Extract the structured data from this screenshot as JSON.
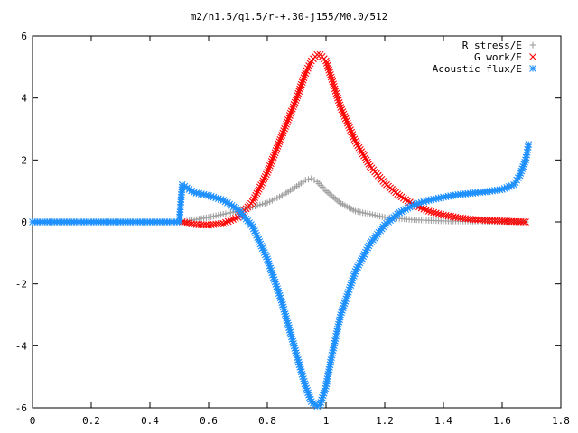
{
  "chart_data": {
    "type": "scatter",
    "title": "m2/n1.5/q1.5/r-+.30-j155/M0.0/512",
    "xlabel": "",
    "ylabel": "",
    "xlim": [
      0,
      1.8
    ],
    "ylim": [
      -6,
      6
    ],
    "x_ticks": [
      "0",
      "0.2",
      "0.4",
      "0.6",
      "0.8",
      "1",
      "1.2",
      "1.4",
      "1.6",
      "1.8"
    ],
    "y_ticks": [
      "-6",
      "-4",
      "-2",
      "0",
      "2",
      "4",
      "6"
    ],
    "grid": false,
    "legend_position": "top-right",
    "series": [
      {
        "name": "R stress/E",
        "marker": "plus",
        "color": "#a0a0a0",
        "x": [
          0.51,
          0.6,
          0.7,
          0.8,
          0.85,
          0.9,
          0.93,
          0.95,
          0.97,
          1.0,
          1.05,
          1.1,
          1.2,
          1.3,
          1.4,
          1.5,
          1.6,
          1.68
        ],
        "y": [
          0.0,
          0.15,
          0.35,
          0.62,
          0.85,
          1.15,
          1.35,
          1.4,
          1.3,
          1.0,
          0.6,
          0.35,
          0.15,
          0.07,
          0.03,
          0.02,
          0.01,
          0.0
        ]
      },
      {
        "name": "G work/E",
        "marker": "x",
        "color": "#ff0000",
        "x": [
          0.51,
          0.55,
          0.6,
          0.65,
          0.7,
          0.75,
          0.8,
          0.85,
          0.9,
          0.93,
          0.95,
          0.97,
          0.98,
          1.0,
          1.02,
          1.05,
          1.1,
          1.15,
          1.2,
          1.25,
          1.3,
          1.35,
          1.4,
          1.45,
          1.5,
          1.55,
          1.6,
          1.68
        ],
        "y": [
          0.0,
          -0.08,
          -0.1,
          -0.05,
          0.15,
          0.65,
          1.6,
          2.8,
          4.0,
          4.8,
          5.2,
          5.4,
          5.4,
          5.2,
          4.6,
          3.7,
          2.6,
          1.8,
          1.25,
          0.85,
          0.55,
          0.35,
          0.22,
          0.14,
          0.08,
          0.05,
          0.03,
          0.0
        ]
      },
      {
        "name": "Acoustic flux/E",
        "marker": "star",
        "color": "#1e90ff",
        "x": [
          0.0,
          0.1,
          0.2,
          0.3,
          0.4,
          0.5,
          0.51,
          0.55,
          0.6,
          0.65,
          0.7,
          0.75,
          0.8,
          0.85,
          0.9,
          0.93,
          0.95,
          0.97,
          0.98,
          1.0,
          1.02,
          1.05,
          1.1,
          1.15,
          1.2,
          1.25,
          1.3,
          1.35,
          1.4,
          1.45,
          1.5,
          1.55,
          1.6,
          1.64,
          1.66,
          1.68,
          1.69
        ],
        "y": [
          0.0,
          0.0,
          0.0,
          0.0,
          0.0,
          0.0,
          1.2,
          0.95,
          0.85,
          0.7,
          0.4,
          -0.15,
          -1.2,
          -2.6,
          -4.3,
          -5.3,
          -5.8,
          -5.95,
          -5.9,
          -5.3,
          -4.3,
          -3.0,
          -1.6,
          -0.7,
          -0.1,
          0.3,
          0.55,
          0.7,
          0.8,
          0.88,
          0.93,
          0.98,
          1.05,
          1.2,
          1.5,
          2.0,
          2.5
        ]
      }
    ]
  }
}
